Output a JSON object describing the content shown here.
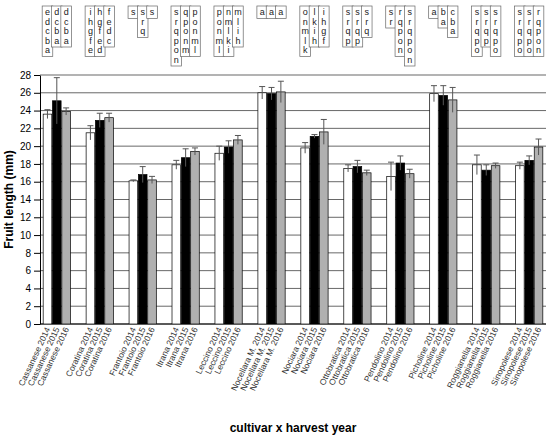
{
  "chart_data": {
    "type": "bar",
    "y_label": "Fruit length (mm)",
    "x_label": "cultivar x harvest year",
    "categories": [
      "Cassanese 2014",
      "Cassanese 2015",
      "Cassanese 2016",
      "Coratina 2014",
      "Coratina 2015",
      "Coratina 2016",
      "Frantoio 2014",
      "Frantoio 2015",
      "Frantoio 2016",
      "Itrana 2014",
      "Itrana 2015",
      "Itrana 2016",
      "Leccino 2014",
      "Leccino 2015",
      "Leccino 2016",
      "Nocellara M. 2014",
      "Nocellara M. 2015",
      "Nocellara M. 2016",
      "Nociara 2014",
      "Nociara 2015",
      "Nociara 2016",
      "Ottobratica 2014",
      "Ottobratica 2015",
      "Ottobratica 2016",
      "Pendolino 2014",
      "Pendolino 2015",
      "Pendolino 2016",
      "Picholine 2014",
      "Picholine 2015",
      "Picholine 2016",
      "Roggianella 2014",
      "Roggianella 2015",
      "Roggianella 2016",
      "Sinopolese 2014",
      "Sinopolese 2015",
      "Sinopolese 2016"
    ],
    "values": [
      23.6,
      25.1,
      23.9,
      21.5,
      22.9,
      23.2,
      16.1,
      16.8,
      16.2,
      17.9,
      18.7,
      19.4,
      19.2,
      19.9,
      20.7,
      26.0,
      25.9,
      26.1,
      19.8,
      21.1,
      21.6,
      17.5,
      17.7,
      17.0,
      16.6,
      18.1,
      16.9,
      25.9,
      25.7,
      25.2,
      17.9,
      17.3,
      17.8,
      17.8,
      18.4,
      19.9
    ],
    "errors": [
      0.5,
      2.6,
      0.4,
      0.8,
      0.8,
      0.5,
      0.1,
      0.9,
      0.4,
      0.5,
      1.0,
      0.4,
      0.8,
      0.7,
      0.5,
      0.7,
      0.7,
      1.2,
      0.6,
      0.2,
      1.4,
      0.4,
      0.7,
      0.3,
      1.6,
      0.8,
      0.5,
      0.9,
      1.1,
      1.4,
      1.1,
      0.6,
      0.3,
      0.4,
      0.5,
      0.9
    ],
    "letters": [
      "edcba",
      "dcba",
      "dcba",
      "ihgfe",
      "hgfed",
      "fedc",
      "s",
      "srq",
      "s",
      "srqpon",
      "qponm",
      "ponml",
      "ponml",
      "nmlki",
      "mlih",
      "a",
      "a",
      "a",
      "onmlk",
      "lkih",
      "ihgf",
      "srqp",
      "srqp",
      "srq",
      "sr",
      "rqpon",
      "srqpon",
      "a",
      "ba",
      "cba",
      "srqpo",
      "srqp",
      "srqpo",
      "srqpo",
      "srqpo",
      "rqpon"
    ],
    "colors": [
      "#ffffff",
      "#000000",
      "#b0b0b0",
      "#ffffff",
      "#000000",
      "#b0b0b0",
      "#ffffff",
      "#000000",
      "#b0b0b0",
      "#ffffff",
      "#000000",
      "#b0b0b0",
      "#ffffff",
      "#000000",
      "#b0b0b0",
      "#ffffff",
      "#000000",
      "#b0b0b0",
      "#ffffff",
      "#000000",
      "#b0b0b0",
      "#ffffff",
      "#000000",
      "#b0b0b0",
      "#ffffff",
      "#000000",
      "#b0b0b0",
      "#ffffff",
      "#000000",
      "#b0b0b0",
      "#ffffff",
      "#000000",
      "#b0b0b0",
      "#ffffff",
      "#000000",
      "#b0b0b0"
    ],
    "ylim": [
      0,
      28
    ],
    "yticks": [
      0,
      2,
      4,
      6,
      8,
      10,
      12,
      14,
      16,
      18,
      20,
      22,
      24,
      26,
      28
    ],
    "grid": true
  }
}
